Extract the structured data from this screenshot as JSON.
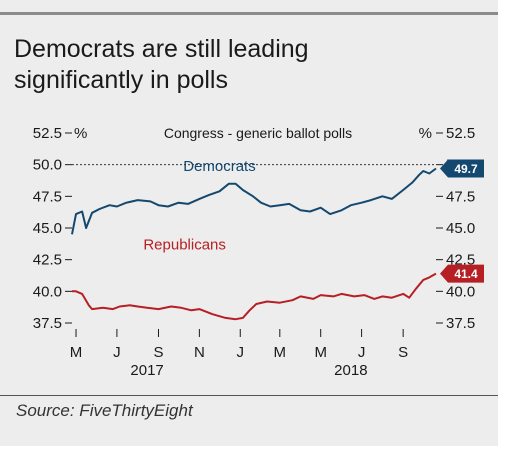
{
  "title_line1": "Democrats are still leading",
  "title_line2": "significantly in polls",
  "source": "Source: FiveThirtyEight",
  "chart_data": {
    "type": "line",
    "subtitle": "Congress - generic ballot polls",
    "y_unit_left": "%",
    "y_unit_right": "%",
    "ylim": [
      37.5,
      52.5
    ],
    "y_ticks_left": [
      "52.5",
      "50.0",
      "47.5",
      "45.0",
      "42.5",
      "40.0",
      "37.5"
    ],
    "y_ticks_right": [
      "52.5",
      "50.0",
      "47.5",
      "45.0",
      "42.5",
      "40.0",
      "37.5"
    ],
    "y_tick_values": [
      52.5,
      50.0,
      47.5,
      45.0,
      42.5,
      40.0,
      37.5
    ],
    "x_range": [
      "2017-04-25",
      "2018-10-20"
    ],
    "x_month_ticks": [
      {
        "label": "M",
        "date": "2017-05-01"
      },
      {
        "label": "J",
        "date": "2017-07-01"
      },
      {
        "label": "S",
        "date": "2017-09-01"
      },
      {
        "label": "N",
        "date": "2017-11-01"
      },
      {
        "label": "J",
        "date": "2018-01-01"
      },
      {
        "label": "M",
        "date": "2018-03-01"
      },
      {
        "label": "M",
        "date": "2018-05-01"
      },
      {
        "label": "J",
        "date": "2018-07-01"
      },
      {
        "label": "S",
        "date": "2018-09-01"
      }
    ],
    "x_years": [
      {
        "label": "2017",
        "date": "2017-08-15"
      },
      {
        "label": "2018",
        "date": "2018-06-15"
      }
    ],
    "reference_line": 50.0,
    "grid": false,
    "series": [
      {
        "name": "Democrats",
        "color": "#14486e",
        "end_label": "49.7",
        "points": [
          [
            "2017-04-25",
            44.5
          ],
          [
            "2017-05-01",
            46.1
          ],
          [
            "2017-05-10",
            46.3
          ],
          [
            "2017-05-16",
            45.0
          ],
          [
            "2017-05-25",
            46.2
          ],
          [
            "2017-06-05",
            46.5
          ],
          [
            "2017-06-20",
            46.8
          ],
          [
            "2017-07-01",
            46.7
          ],
          [
            "2017-07-15",
            47.0
          ],
          [
            "2017-08-01",
            47.2
          ],
          [
            "2017-08-20",
            47.1
          ],
          [
            "2017-09-01",
            46.8
          ],
          [
            "2017-09-15",
            46.7
          ],
          [
            "2017-10-01",
            47.0
          ],
          [
            "2017-10-15",
            46.9
          ],
          [
            "2017-11-01",
            47.3
          ],
          [
            "2017-11-15",
            47.6
          ],
          [
            "2017-12-01",
            47.9
          ],
          [
            "2017-12-15",
            48.5
          ],
          [
            "2017-12-25",
            48.5
          ],
          [
            "2018-01-05",
            48.0
          ],
          [
            "2018-01-20",
            47.5
          ],
          [
            "2018-02-01",
            47.0
          ],
          [
            "2018-02-15",
            46.7
          ],
          [
            "2018-03-01",
            46.8
          ],
          [
            "2018-03-15",
            46.9
          ],
          [
            "2018-04-01",
            46.4
          ],
          [
            "2018-04-15",
            46.3
          ],
          [
            "2018-05-01",
            46.6
          ],
          [
            "2018-05-15",
            46.1
          ],
          [
            "2018-06-01",
            46.4
          ],
          [
            "2018-06-15",
            46.8
          ],
          [
            "2018-07-01",
            47.0
          ],
          [
            "2018-07-15",
            47.2
          ],
          [
            "2018-08-01",
            47.5
          ],
          [
            "2018-08-15",
            47.3
          ],
          [
            "2018-09-01",
            48.0
          ],
          [
            "2018-09-15",
            48.6
          ],
          [
            "2018-09-25",
            49.2
          ],
          [
            "2018-10-01",
            49.5
          ],
          [
            "2018-10-10",
            49.3
          ],
          [
            "2018-10-20",
            49.7
          ]
        ]
      },
      {
        "name": "Republicans",
        "color": "#b61f23",
        "end_label": "41.4",
        "points": [
          [
            "2017-04-25",
            40.0
          ],
          [
            "2017-05-01",
            40.0
          ],
          [
            "2017-05-10",
            39.8
          ],
          [
            "2017-05-20",
            38.9
          ],
          [
            "2017-05-25",
            38.6
          ],
          [
            "2017-06-10",
            38.7
          ],
          [
            "2017-06-25",
            38.6
          ],
          [
            "2017-07-05",
            38.8
          ],
          [
            "2017-07-20",
            38.9
          ],
          [
            "2017-08-01",
            38.8
          ],
          [
            "2017-08-15",
            38.7
          ],
          [
            "2017-09-01",
            38.6
          ],
          [
            "2017-09-20",
            38.8
          ],
          [
            "2017-10-05",
            38.7
          ],
          [
            "2017-10-20",
            38.5
          ],
          [
            "2017-11-01",
            38.6
          ],
          [
            "2017-11-20",
            38.2
          ],
          [
            "2017-12-10",
            37.9
          ],
          [
            "2017-12-25",
            37.8
          ],
          [
            "2018-01-05",
            37.9
          ],
          [
            "2018-01-15",
            38.5
          ],
          [
            "2018-01-25",
            39.0
          ],
          [
            "2018-02-10",
            39.2
          ],
          [
            "2018-03-01",
            39.1
          ],
          [
            "2018-03-20",
            39.3
          ],
          [
            "2018-04-01",
            39.6
          ],
          [
            "2018-04-20",
            39.4
          ],
          [
            "2018-05-01",
            39.7
          ],
          [
            "2018-05-20",
            39.6
          ],
          [
            "2018-06-01",
            39.8
          ],
          [
            "2018-06-20",
            39.6
          ],
          [
            "2018-07-05",
            39.7
          ],
          [
            "2018-07-20",
            39.4
          ],
          [
            "2018-08-01",
            39.6
          ],
          [
            "2018-08-15",
            39.5
          ],
          [
            "2018-09-01",
            39.8
          ],
          [
            "2018-09-10",
            39.5
          ],
          [
            "2018-09-20",
            40.2
          ],
          [
            "2018-10-01",
            40.9
          ],
          [
            "2018-10-10",
            41.1
          ],
          [
            "2018-10-20",
            41.4
          ]
        ]
      }
    ]
  }
}
